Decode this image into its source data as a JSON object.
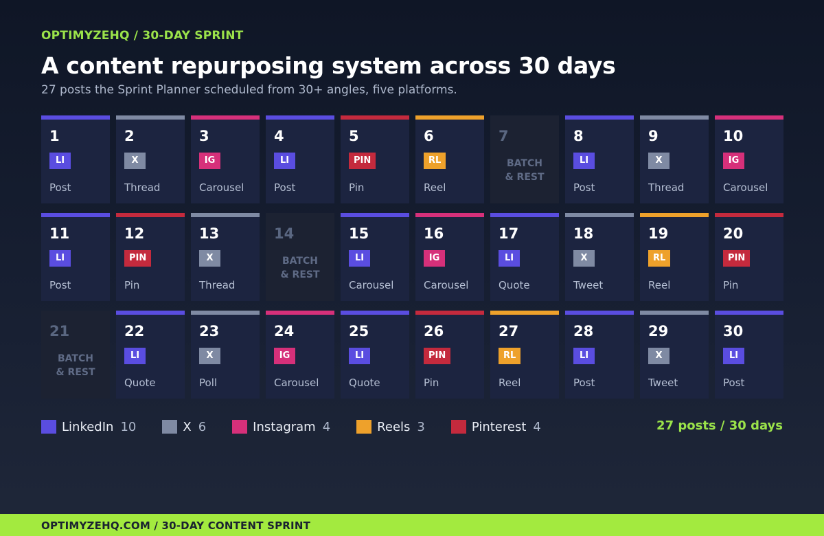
{
  "header": {
    "eyebrow": "OPTIMYZEHQ / 30-DAY SPRINT",
    "title": "A content repurposing system across 30 days",
    "subtitle": "27 posts the Sprint Planner scheduled from 30+ angles, five platforms."
  },
  "platforms": {
    "LI": {
      "badge": "LI",
      "name": "LinkedIn",
      "count": "10",
      "color": "#5a4de0"
    },
    "X": {
      "badge": "X",
      "name": "X",
      "count": "6",
      "color": "#7f8aa3"
    },
    "IG": {
      "badge": "IG",
      "name": "Instagram",
      "count": "4",
      "color": "#d6307a"
    },
    "RL": {
      "badge": "RL",
      "name": "Reels",
      "count": "3",
      "color": "#eea12b"
    },
    "PIN": {
      "badge": "PIN",
      "name": "Pinterest",
      "count": "4",
      "color": "#c42a3d"
    }
  },
  "legend_order": [
    "LI",
    "X",
    "IG",
    "RL",
    "PIN"
  ],
  "days": [
    {
      "day": "1",
      "platform": "LI",
      "format": "Post"
    },
    {
      "day": "2",
      "platform": "X",
      "format": "Thread"
    },
    {
      "day": "3",
      "platform": "IG",
      "format": "Carousel"
    },
    {
      "day": "4",
      "platform": "LI",
      "format": "Post"
    },
    {
      "day": "5",
      "platform": "PIN",
      "format": "Pin"
    },
    {
      "day": "6",
      "platform": "RL",
      "format": "Reel"
    },
    {
      "day": "7",
      "rest": true,
      "rest_line1": "BATCH",
      "rest_line2": "& REST"
    },
    {
      "day": "8",
      "platform": "LI",
      "format": "Post"
    },
    {
      "day": "9",
      "platform": "X",
      "format": "Thread"
    },
    {
      "day": "10",
      "platform": "IG",
      "format": "Carousel"
    },
    {
      "day": "11",
      "platform": "LI",
      "format": "Post"
    },
    {
      "day": "12",
      "platform": "PIN",
      "format": "Pin"
    },
    {
      "day": "13",
      "platform": "X",
      "format": "Thread"
    },
    {
      "day": "14",
      "rest": true,
      "rest_line1": "BATCH",
      "rest_line2": "& REST"
    },
    {
      "day": "15",
      "platform": "LI",
      "format": "Carousel"
    },
    {
      "day": "16",
      "platform": "IG",
      "format": "Carousel"
    },
    {
      "day": "17",
      "platform": "LI",
      "format": "Quote"
    },
    {
      "day": "18",
      "platform": "X",
      "format": "Tweet"
    },
    {
      "day": "19",
      "platform": "RL",
      "format": "Reel"
    },
    {
      "day": "20",
      "platform": "PIN",
      "format": "Pin"
    },
    {
      "day": "21",
      "rest": true,
      "rest_line1": "BATCH",
      "rest_line2": "& REST"
    },
    {
      "day": "22",
      "platform": "LI",
      "format": "Quote"
    },
    {
      "day": "23",
      "platform": "X",
      "format": "Poll"
    },
    {
      "day": "24",
      "platform": "IG",
      "format": "Carousel"
    },
    {
      "day": "25",
      "platform": "LI",
      "format": "Quote"
    },
    {
      "day": "26",
      "platform": "PIN",
      "format": "Pin"
    },
    {
      "day": "27",
      "platform": "RL",
      "format": "Reel"
    },
    {
      "day": "28",
      "platform": "LI",
      "format": "Post"
    },
    {
      "day": "29",
      "platform": "X",
      "format": "Tweet"
    },
    {
      "day": "30",
      "platform": "LI",
      "format": "Post"
    }
  ],
  "total": "27 posts / 30 days",
  "footer": "OPTIMYZEHQ.COM / 30-DAY CONTENT SPRINT"
}
